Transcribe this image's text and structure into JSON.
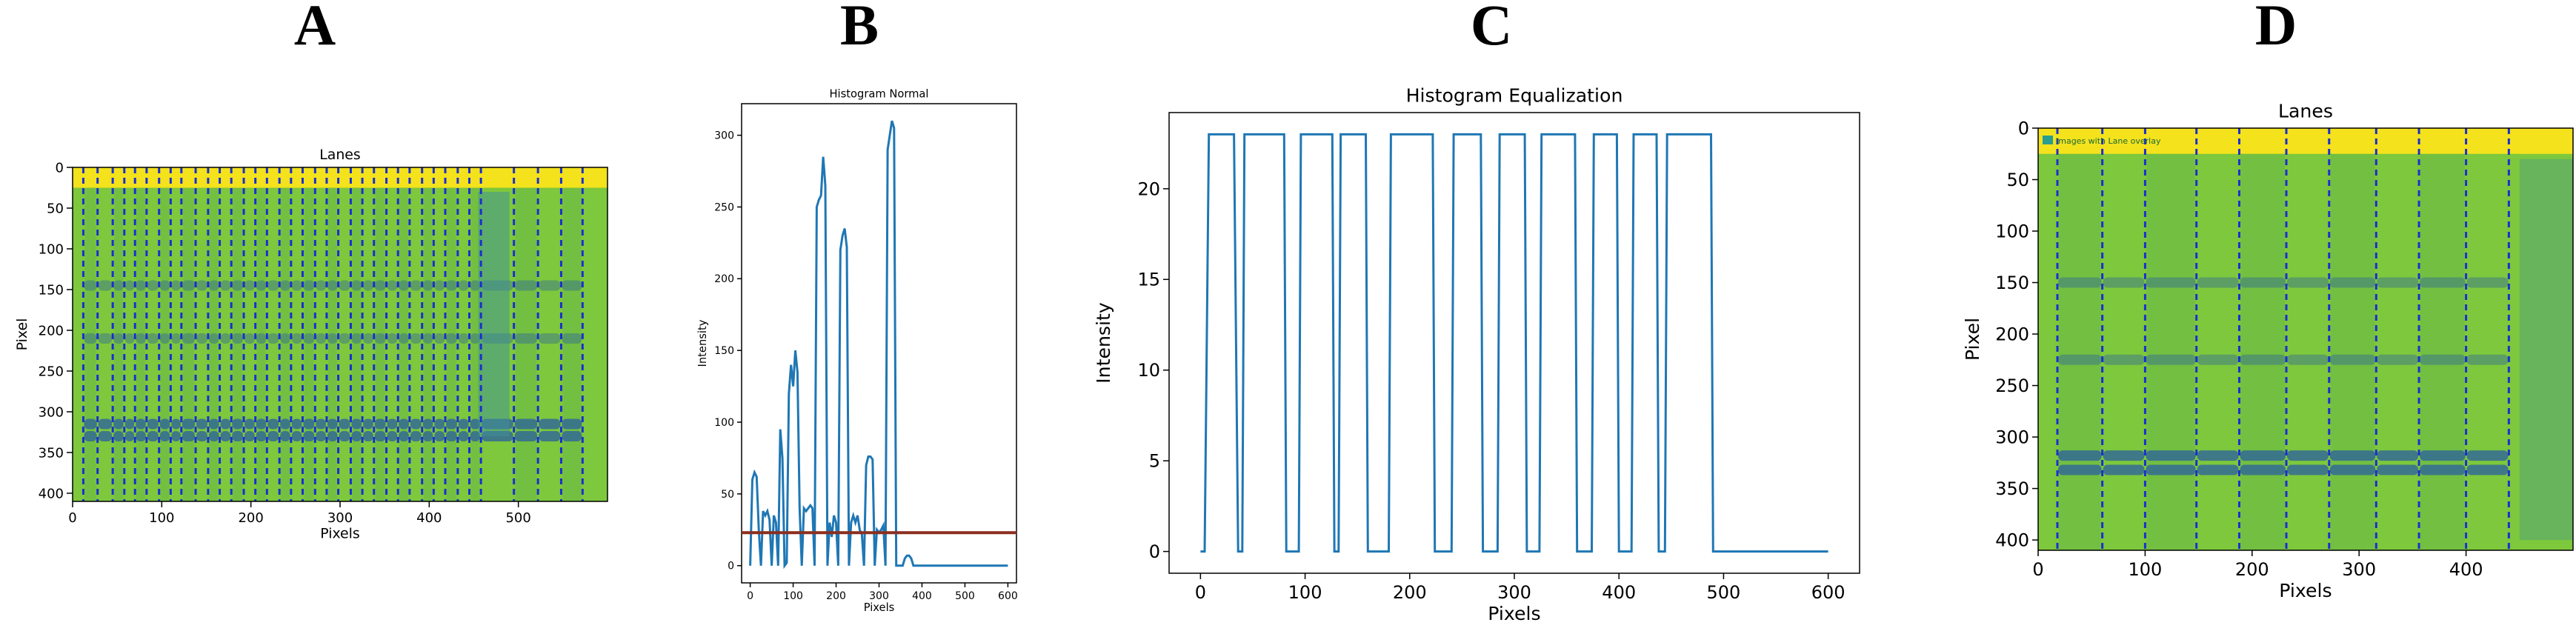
{
  "figure": {
    "panel_labels": [
      "A",
      "B",
      "C",
      "D"
    ]
  },
  "colors": {
    "line": "#1f77b4",
    "threshold": "#8b2e1f",
    "lane_divider": "#1a2fd0",
    "gel_background": "#7dc83c",
    "gel_top_band": "#f4e21c",
    "gel_band": "#2b5fa0"
  },
  "chart_data": [
    {
      "panel": "A",
      "type": "heatmap",
      "title": "Lanes",
      "xlabel": "Pixels",
      "ylabel": "Pixel",
      "xlim": [
        0,
        600
      ],
      "ylim": [
        410,
        0
      ],
      "xticks": [
        0,
        100,
        200,
        300,
        400,
        500
      ],
      "yticks": [
        0,
        50,
        100,
        150,
        200,
        250,
        300,
        350,
        400
      ],
      "lane_dividers_x": [
        12,
        28,
        45,
        58,
        70,
        83,
        97,
        110,
        122,
        138,
        152,
        165,
        178,
        192,
        205,
        218,
        232,
        245,
        258,
        272,
        285,
        298,
        312,
        325,
        338,
        352,
        365,
        378,
        392,
        405,
        418,
        432,
        445,
        458,
        495,
        522,
        548,
        572
      ],
      "band_rows_y": [
        145,
        210,
        315,
        330
      ]
    },
    {
      "panel": "B",
      "type": "line",
      "title": "Histogram Normal",
      "xlabel": "Pixels",
      "ylabel": "Intensity",
      "xlim": [
        -20,
        620
      ],
      "ylim": [
        -12,
        322
      ],
      "xticks": [
        0,
        100,
        200,
        300,
        400,
        500,
        600
      ],
      "yticks": [
        0,
        50,
        100,
        150,
        200,
        250,
        300
      ],
      "threshold": 23,
      "x": [
        0,
        5,
        10,
        15,
        20,
        25,
        30,
        35,
        40,
        45,
        50,
        55,
        60,
        65,
        70,
        75,
        80,
        85,
        90,
        95,
        100,
        105,
        110,
        115,
        120,
        125,
        130,
        135,
        140,
        145,
        150,
        155,
        160,
        165,
        170,
        175,
        180,
        185,
        190,
        195,
        200,
        205,
        210,
        215,
        220,
        225,
        230,
        235,
        240,
        245,
        250,
        255,
        260,
        265,
        270,
        275,
        280,
        285,
        290,
        295,
        300,
        305,
        310,
        315,
        320,
        325,
        330,
        335,
        340,
        345,
        350,
        355,
        360,
        365,
        370,
        375,
        380,
        385,
        390,
        395,
        400,
        405,
        410,
        415,
        420,
        425,
        430,
        435,
        440,
        445,
        450,
        455,
        460,
        465,
        470,
        475,
        480,
        485,
        490,
        495,
        500,
        505,
        510,
        515,
        520,
        525,
        530,
        535,
        540,
        545,
        550,
        555,
        560,
        565,
        570,
        575,
        580,
        585,
        590,
        595,
        600
      ],
      "values": [
        0,
        60,
        65,
        62,
        25,
        0,
        38,
        35,
        38,
        32,
        0,
        35,
        30,
        0,
        95,
        75,
        0,
        2,
        120,
        140,
        125,
        150,
        135,
        40,
        0,
        40,
        38,
        40,
        42,
        40,
        0,
        250,
        255,
        258,
        285,
        265,
        0,
        30,
        20,
        35,
        30,
        0,
        220,
        230,
        235,
        222,
        0,
        30,
        35,
        30,
        35,
        25,
        22,
        0,
        70,
        76,
        76,
        74,
        0,
        25,
        23,
        25,
        28,
        0,
        290,
        300,
        310,
        305,
        0,
        0,
        0,
        0,
        5,
        7,
        7,
        5,
        0,
        0,
        0,
        0,
        0,
        0,
        0,
        0,
        0,
        0,
        0,
        0,
        0,
        0,
        0,
        0,
        0,
        0,
        0,
        0,
        0,
        0,
        0,
        0,
        0,
        0,
        0,
        0,
        0,
        0,
        0,
        0,
        0,
        0,
        0,
        0,
        0,
        0,
        0,
        0,
        0,
        0,
        0,
        0,
        0
      ]
    },
    {
      "panel": "C",
      "type": "line",
      "title": "Histogram Equalization",
      "xlabel": "Pixels",
      "ylabel": "Intensity",
      "xlim": [
        -30,
        630
      ],
      "ylim": [
        -1.2,
        24.2
      ],
      "xticks": [
        0,
        100,
        200,
        300,
        400,
        500,
        600
      ],
      "yticks": [
        0,
        5,
        10,
        15,
        20
      ],
      "x": [
        0,
        4,
        8,
        10,
        32,
        36,
        40,
        42,
        56,
        58,
        80,
        82,
        94,
        96,
        126,
        128,
        132,
        134,
        158,
        160,
        180,
        182,
        190,
        192,
        222,
        224,
        240,
        242,
        268,
        270,
        284,
        286,
        310,
        312,
        324,
        326,
        358,
        360,
        374,
        376,
        398,
        400,
        412,
        414,
        436,
        438,
        444,
        446,
        488,
        490,
        600
      ],
      "values": [
        0,
        0,
        23,
        23,
        23,
        0,
        0,
        23,
        23,
        23,
        23,
        0,
        0,
        23,
        23,
        0,
        0,
        23,
        23,
        0,
        0,
        23,
        23,
        23,
        23,
        0,
        0,
        23,
        23,
        0,
        0,
        23,
        23,
        0,
        0,
        23,
        23,
        0,
        0,
        23,
        23,
        0,
        0,
        23,
        23,
        0,
        0,
        23,
        23,
        0,
        0
      ]
    },
    {
      "panel": "D",
      "type": "heatmap",
      "title": "Lanes",
      "xlabel": "Pixels",
      "ylabel": "Pixel",
      "xlim": [
        0,
        500
      ],
      "ylim": [
        410,
        0
      ],
      "xticks": [
        0,
        100,
        200,
        300,
        400
      ],
      "yticks": [
        0,
        50,
        100,
        150,
        200,
        250,
        300,
        350,
        400
      ],
      "legend": "Images with Lane overlay",
      "lane_dividers_x": [
        18,
        60,
        100,
        148,
        188,
        232,
        272,
        316,
        356,
        400,
        440
      ],
      "band_rows_y": [
        150,
        225,
        318,
        332
      ]
    }
  ]
}
